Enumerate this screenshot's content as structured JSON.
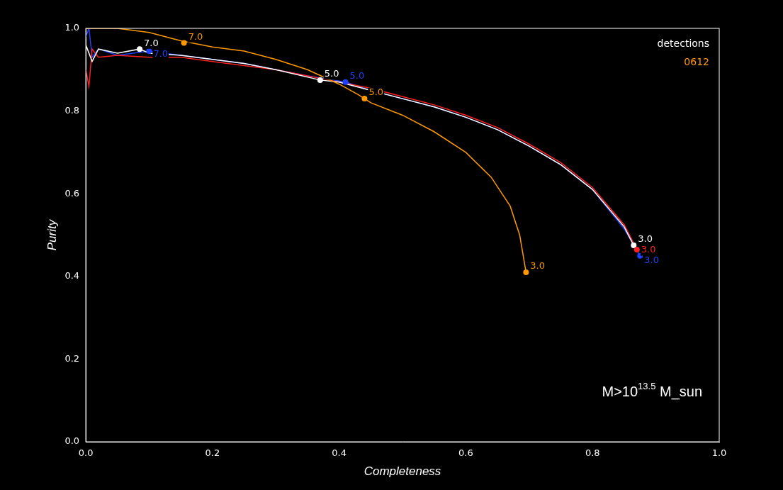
{
  "chart_data": {
    "type": "line",
    "x_label": "Completeness",
    "y_label": "Purity",
    "xlim": [
      0,
      1
    ],
    "ylim": [
      0,
      1
    ],
    "xticks": [
      {
        "value": 0,
        "label": "0.0"
      },
      0.2,
      0.4,
      0.6,
      0.8,
      {
        "value": 1,
        "label": "1.0"
      }
    ],
    "yticks": [
      {
        "value": 0,
        "label": "0.0"
      },
      0.2,
      0.4,
      0.6,
      0.8,
      {
        "value": 1,
        "label": "1.0"
      }
    ],
    "grid": false,
    "legend": "upper right",
    "legend_title": "detections",
    "annotation": {
      "text": "M>10",
      "superscript": "13.5",
      "suffix": " M_sun"
    },
    "series": [
      {
        "name": "0612",
        "color": "#ff9900",
        "x": [
          0.0,
          0.02,
          0.05,
          0.1,
          0.15,
          0.2,
          0.25,
          0.3,
          0.35,
          0.4,
          0.43,
          0.44,
          0.45,
          0.5,
          0.55,
          0.6,
          0.64,
          0.67,
          0.685,
          0.695
        ],
        "values": [
          1.0,
          1.0,
          1.0,
          0.99,
          0.97,
          0.955,
          0.945,
          0.925,
          0.9,
          0.865,
          0.84,
          0.83,
          0.82,
          0.79,
          0.75,
          0.7,
          0.64,
          0.57,
          0.5,
          0.41
        ],
        "markers": [
          {
            "x": 0.155,
            "y": 0.965,
            "label": "7.0"
          },
          {
            "x": 0.44,
            "y": 0.83,
            "label": "5.0"
          },
          {
            "x": 0.695,
            "y": 0.41,
            "label": "3.0"
          }
        ]
      },
      {
        "color": "#ffffff",
        "x": [
          0.0,
          0.01,
          0.02,
          0.05,
          0.085,
          0.1,
          0.15,
          0.2,
          0.25,
          0.3,
          0.37,
          0.4,
          0.45,
          0.5,
          0.55,
          0.6,
          0.65,
          0.7,
          0.75,
          0.8,
          0.85,
          0.865
        ],
        "values": [
          0.96,
          0.92,
          0.95,
          0.94,
          0.95,
          0.94,
          0.935,
          0.925,
          0.915,
          0.9,
          0.875,
          0.87,
          0.85,
          0.83,
          0.81,
          0.785,
          0.755,
          0.715,
          0.67,
          0.61,
          0.52,
          0.475
        ],
        "markers": [
          {
            "x": 0.085,
            "y": 0.95,
            "label": "7.0"
          },
          {
            "x": 0.37,
            "y": 0.875,
            "label": "5.0"
          },
          {
            "x": 0.865,
            "y": 0.475,
            "label": "3.0"
          }
        ]
      },
      {
        "color": "#ff2020",
        "x": [
          0.0,
          0.005,
          0.01,
          0.02,
          0.05,
          0.1,
          0.15,
          0.2,
          0.25,
          0.3,
          0.35,
          0.4,
          0.45,
          0.5,
          0.55,
          0.6,
          0.65,
          0.7,
          0.75,
          0.8,
          0.85,
          0.87
        ],
        "values": [
          0.9,
          0.86,
          0.95,
          0.93,
          0.935,
          0.93,
          0.93,
          0.92,
          0.91,
          0.9,
          0.885,
          0.87,
          0.855,
          0.835,
          0.815,
          0.79,
          0.76,
          0.72,
          0.675,
          0.615,
          0.525,
          0.465
        ],
        "markers": [
          {
            "x": 0.87,
            "y": 0.465,
            "label": "3.0"
          }
        ]
      },
      {
        "color": "#2040ff",
        "x": [
          0.0,
          0.005,
          0.01,
          0.02,
          0.05,
          0.1,
          0.15,
          0.2,
          0.25,
          0.3,
          0.35,
          0.41,
          0.45,
          0.5,
          0.55,
          0.6,
          0.65,
          0.7,
          0.75,
          0.8,
          0.85,
          0.875
        ],
        "values": [
          0.98,
          1.0,
          0.93,
          0.95,
          0.935,
          0.945,
          0.935,
          0.925,
          0.915,
          0.9,
          0.885,
          0.87,
          0.85,
          0.83,
          0.81,
          0.785,
          0.755,
          0.715,
          0.67,
          0.61,
          0.515,
          0.45
        ],
        "markers": [
          {
            "x": 0.1,
            "y": 0.945,
            "label": "7.0"
          },
          {
            "x": 0.41,
            "y": 0.87,
            "label": "5.0"
          },
          {
            "x": 0.875,
            "y": 0.45,
            "label": "3.0"
          }
        ]
      }
    ]
  }
}
